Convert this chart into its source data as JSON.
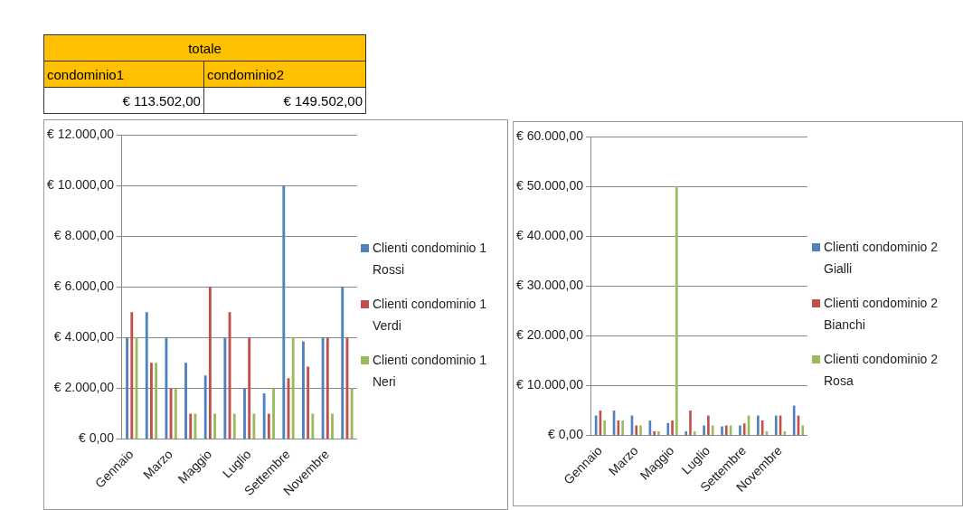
{
  "chart_data": [
    {
      "type": "other",
      "title": "totale",
      "categories": [
        "condominio1",
        "condominio2"
      ],
      "value_labels": [
        "€ 113.502,00",
        "€ 149.502,00"
      ]
    },
    {
      "type": "bar",
      "categories": [
        "Gennaio",
        null,
        "Marzo",
        null,
        "Maggio",
        null,
        "Luglio",
        null,
        "Settembre",
        null,
        "Novembre",
        null
      ],
      "series": [
        {
          "name": "Clienti condominio 1 Rossi",
          "color": "#4f81bd",
          "values": [
            4000,
            5000,
            4000,
            3000,
            2500,
            4000,
            2000,
            1800,
            10000,
            3850,
            4000,
            6000
          ]
        },
        {
          "name": "Clienti condominio 1 Verdi",
          "color": "#c0504d",
          "values": [
            5000,
            3000,
            2000,
            1000,
            6000,
            5000,
            4000,
            1000,
            2400,
            2850,
            4000,
            4000
          ]
        },
        {
          "name": "Clienti condominio 1 Neri",
          "color": "#9bbb59",
          "values": [
            4000,
            3000,
            2000,
            1000,
            1000,
            1000,
            1000,
            2000,
            4000,
            1000,
            1000,
            2000
          ]
        }
      ],
      "ylim": [
        0,
        12000
      ],
      "yticks": [
        {
          "value": 0,
          "label": "€ 0,00"
        },
        {
          "value": 2000,
          "label": "€ 2.000,00"
        },
        {
          "value": 4000,
          "label": "€ 4.000,00"
        },
        {
          "value": 6000,
          "label": "€ 6.000,00"
        },
        {
          "value": 8000,
          "label": "€ 8.000,00"
        },
        {
          "value": 10000,
          "label": "€ 10.000,00"
        },
        {
          "value": 12000,
          "label": "€ 12.000,00"
        }
      ],
      "grid": "y",
      "legend": "right"
    },
    {
      "type": "bar",
      "categories": [
        "Gennaio",
        null,
        "Marzo",
        null,
        "Maggio",
        null,
        "Luglio",
        null,
        "Settembre",
        null,
        "Novembre",
        null
      ],
      "series": [
        {
          "name": "Clienti condominio 2 Gialli",
          "color": "#4f81bd",
          "values": [
            4000,
            5000,
            4000,
            3000,
            2500,
            800,
            2000,
            1800,
            2000,
            4000,
            4000,
            6000
          ]
        },
        {
          "name": "Clienti condominio 2 Bianchi",
          "color": "#c0504d",
          "values": [
            5000,
            3000,
            2000,
            800,
            3000,
            5000,
            4000,
            2000,
            2400,
            3000,
            4000,
            4000
          ]
        },
        {
          "name": "Clienti condominio 2 Rosa",
          "color": "#9bbb59",
          "values": [
            3000,
            3000,
            2000,
            800,
            50000,
            800,
            2000,
            2000,
            4000,
            800,
            800,
            2000
          ]
        }
      ],
      "ylim": [
        0,
        60000
      ],
      "yticks": [
        {
          "value": 0,
          "label": "€ 0,00"
        },
        {
          "value": 10000,
          "label": "€ 10.000,00"
        },
        {
          "value": 20000,
          "label": "€ 20.000,00"
        },
        {
          "value": 30000,
          "label": "€ 30.000,00"
        },
        {
          "value": 40000,
          "label": "€ 40.000,00"
        },
        {
          "value": 50000,
          "label": "€ 50.000,00"
        },
        {
          "value": 60000,
          "label": "€ 60.000,00"
        }
      ],
      "grid": "y",
      "legend": "right"
    }
  ]
}
